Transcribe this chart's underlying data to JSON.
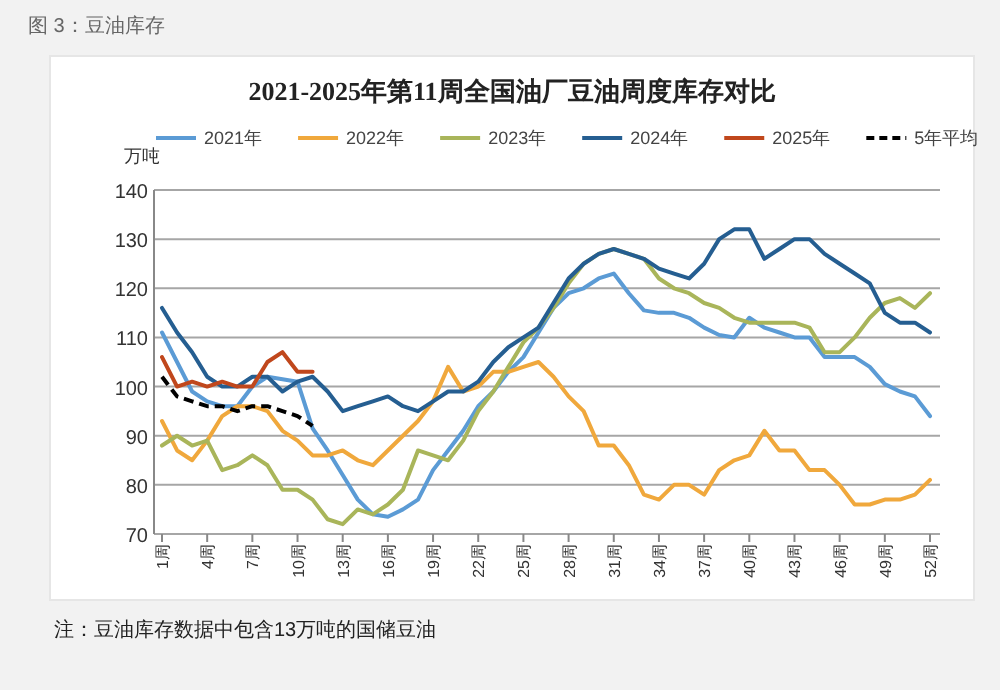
{
  "chart_data": {
    "type": "line",
    "title": "2021-2025年第11周全国油厂豆油周度库存对比",
    "ylabel": "万吨",
    "annotations": [
      "图 3：豆油库存",
      "注：豆油库存数据中包含13万吨的国储豆油"
    ],
    "categories": [
      "1周",
      null,
      null,
      "4周",
      null,
      null,
      "7周",
      null,
      null,
      "10周",
      null,
      null,
      "13周",
      null,
      null,
      "16周",
      null,
      null,
      "19周",
      null,
      null,
      "22周",
      null,
      null,
      "25周",
      null,
      null,
      "28周",
      null,
      null,
      "31周",
      null,
      null,
      "34周",
      null,
      null,
      "37周",
      null,
      null,
      "40周",
      null,
      null,
      "43周",
      null,
      null,
      "46周",
      null,
      null,
      "49周",
      null,
      null,
      "52周"
    ],
    "ylim": [
      70,
      140
    ],
    "yticks": [
      70,
      80,
      90,
      100,
      110,
      120,
      130,
      140
    ],
    "grid": "y",
    "legend": "top",
    "marker": "none",
    "series": [
      {
        "name": "2021年",
        "color": "#5b9bd5",
        "values": [
          111,
          105,
          99,
          97,
          96,
          96,
          100,
          102,
          101.5,
          101,
          91.5,
          87,
          82,
          77,
          74,
          73.5,
          75,
          77,
          83,
          87,
          91,
          96,
          99,
          103,
          106,
          111,
          116,
          119,
          120,
          122,
          123,
          119,
          115.5,
          115,
          115,
          114,
          112,
          110.5,
          110,
          114,
          112,
          111,
          110,
          110,
          106,
          106,
          106,
          104,
          100.5,
          99,
          98,
          94
        ]
      },
      {
        "name": "2022年",
        "color": "#f0a83c",
        "values": [
          93,
          87,
          85,
          89,
          94,
          96,
          96,
          95,
          91,
          89,
          86,
          86,
          87,
          85,
          84,
          87,
          90,
          93,
          97,
          104,
          99,
          100,
          103,
          103,
          104,
          105,
          102,
          98,
          95,
          88,
          88,
          84,
          78,
          77,
          80,
          80,
          78,
          83,
          85,
          86,
          91,
          87,
          87,
          83,
          83,
          80,
          76,
          76,
          77,
          77,
          78,
          81
        ]
      },
      {
        "name": "2023年",
        "color": "#a9b55a",
        "values": [
          88,
          90,
          88,
          89,
          83,
          84,
          86,
          84,
          79,
          79,
          77,
          73,
          72,
          75,
          74,
          76,
          79,
          87,
          86,
          85,
          89,
          95,
          99,
          104,
          109,
          112,
          116,
          121,
          125,
          127,
          128,
          127,
          126,
          122,
          120,
          119,
          117,
          116,
          114,
          113,
          113,
          113,
          113,
          112,
          107,
          107,
          110,
          114,
          117,
          118,
          116,
          119
        ]
      },
      {
        "name": "2024年",
        "color": "#255e91",
        "values": [
          116,
          111,
          107,
          102,
          100,
          100,
          102,
          102,
          99,
          101,
          102,
          99,
          95,
          96,
          97,
          98,
          96,
          95,
          97,
          99,
          99,
          101,
          105,
          108,
          110,
          112,
          117,
          122,
          125,
          127,
          128,
          127,
          126,
          124,
          123,
          122,
          125,
          130,
          132,
          132,
          126,
          128,
          130,
          130,
          127,
          125,
          123,
          121,
          115,
          113,
          113,
          111
        ]
      },
      {
        "name": "2025年",
        "color": "#c0471c",
        "values": [
          106,
          100,
          101,
          100,
          101,
          100,
          100,
          105,
          107,
          103,
          103,
          null,
          null,
          null,
          null,
          null,
          null,
          null,
          null,
          null,
          null,
          null,
          null,
          null,
          null,
          null,
          null,
          null,
          null,
          null,
          null,
          null,
          null,
          null,
          null,
          null,
          null,
          null,
          null,
          null,
          null,
          null,
          null,
          null,
          null,
          null,
          null,
          null,
          null,
          null,
          null,
          null
        ]
      },
      {
        "name": "5年平均",
        "color": "#000000",
        "line_style": "dashed",
        "values": [
          102,
          98,
          97,
          96,
          96,
          95,
          96,
          96,
          95,
          94,
          92,
          null,
          null,
          null,
          null,
          null,
          null,
          null,
          null,
          null,
          null,
          null,
          null,
          null,
          null,
          null,
          null,
          null,
          null,
          null,
          null,
          null,
          null,
          null,
          null,
          null,
          null,
          null,
          null,
          null,
          null,
          null,
          null,
          null,
          null,
          null,
          null,
          null,
          null,
          null,
          null,
          null
        ]
      }
    ]
  }
}
